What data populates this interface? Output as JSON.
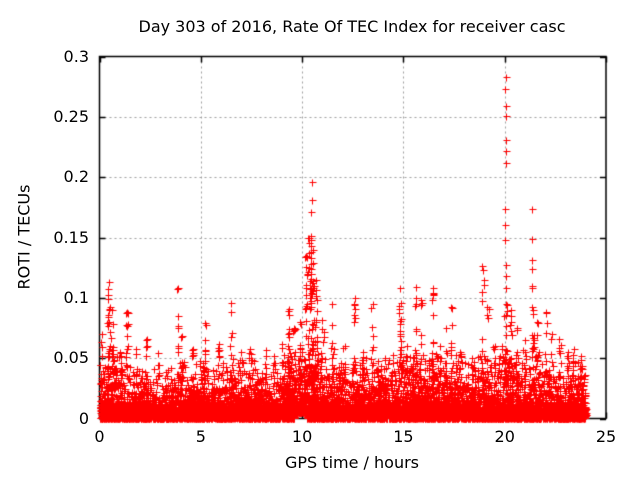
{
  "chart_data": {
    "type": "scatter",
    "title": "Day 303 of 2016, Rate Of TEC Index for receiver casc",
    "xlabel": "GPS time / hours",
    "ylabel": "ROTI / TECUs",
    "xlim": [
      0,
      25
    ],
    "ylim": [
      0,
      0.3
    ],
    "xticks": [
      0,
      5,
      10,
      15,
      20,
      25
    ],
    "xtick_labels": [
      "0",
      "5",
      "10",
      "15",
      "20",
      "25"
    ],
    "yticks": [
      0,
      0.05,
      0.1,
      0.15,
      0.2,
      0.25,
      0.3
    ],
    "ytick_labels": [
      "0",
      "0.05",
      "0.1",
      "0.15",
      "0.2",
      "0.25",
      "0.3"
    ],
    "grid": true,
    "legend": false,
    "marker": "plus",
    "marker_size_px": 7,
    "colors": {
      "marker": "#ff0000",
      "grid": "#9e9e9e",
      "border": "#000000",
      "background": "#ffffff"
    },
    "data_hours_range": [
      0,
      24
    ],
    "background_band": {
      "carpet_n": 3200,
      "carpet_max": 0.014,
      "band_n": 6200,
      "band_overshoot": 1.25,
      "liftoff": {
        "range": [
          9.6,
          10.25
        ],
        "min": 0.005
      }
    },
    "envelope": [
      [
        0,
        0.038
      ],
      [
        0.3,
        0.045
      ],
      [
        0.6,
        0.05
      ],
      [
        1,
        0.042
      ],
      [
        1.5,
        0.036
      ],
      [
        2,
        0.034
      ],
      [
        2.5,
        0.036
      ],
      [
        3,
        0.03
      ],
      [
        3.5,
        0.034
      ],
      [
        4,
        0.04
      ],
      [
        4.5,
        0.036
      ],
      [
        5,
        0.04
      ],
      [
        5.5,
        0.034
      ],
      [
        6,
        0.038
      ],
      [
        6.5,
        0.04
      ],
      [
        7,
        0.036
      ],
      [
        7.5,
        0.04
      ],
      [
        8,
        0.038
      ],
      [
        8.5,
        0.038
      ],
      [
        9,
        0.042
      ],
      [
        9.5,
        0.05
      ],
      [
        9.8,
        0.042
      ],
      [
        10.2,
        0.055
      ],
      [
        10.5,
        0.06
      ],
      [
        11,
        0.045
      ],
      [
        11.5,
        0.046
      ],
      [
        12,
        0.04
      ],
      [
        12.5,
        0.038
      ],
      [
        13,
        0.04
      ],
      [
        13.5,
        0.042
      ],
      [
        14,
        0.038
      ],
      [
        14.5,
        0.044
      ],
      [
        15,
        0.042
      ],
      [
        15.5,
        0.044
      ],
      [
        16,
        0.042
      ],
      [
        16.5,
        0.046
      ],
      [
        17,
        0.044
      ],
      [
        17.5,
        0.044
      ],
      [
        18,
        0.04
      ],
      [
        18.5,
        0.042
      ],
      [
        19,
        0.044
      ],
      [
        19.5,
        0.042
      ],
      [
        20,
        0.05
      ],
      [
        20.5,
        0.046
      ],
      [
        21,
        0.04
      ],
      [
        21.5,
        0.046
      ],
      [
        22,
        0.042
      ],
      [
        22.5,
        0.04
      ],
      [
        23,
        0.038
      ],
      [
        23.5,
        0.042
      ],
      [
        24,
        0.038
      ]
    ],
    "spikes": [
      {
        "x": 0.1,
        "peak": 0.07,
        "n": 6
      },
      {
        "x": 0.45,
        "peak": 0.113,
        "n": 26
      },
      {
        "x": 0.62,
        "peak": 0.09,
        "n": 12
      },
      {
        "x": 1.0,
        "peak": 0.055,
        "n": 5
      },
      {
        "x": 1.35,
        "peak": 0.088,
        "n": 12
      },
      {
        "x": 1.8,
        "peak": 0.058,
        "n": 5
      },
      {
        "x": 2.35,
        "peak": 0.066,
        "n": 8
      },
      {
        "x": 2.9,
        "peak": 0.054,
        "n": 5
      },
      {
        "x": 3.88,
        "peak": 0.108,
        "n": 10
      },
      {
        "x": 4.05,
        "peak": 0.068,
        "n": 10
      },
      {
        "x": 4.6,
        "peak": 0.058,
        "n": 5
      },
      {
        "x": 5.2,
        "peak": 0.079,
        "n": 10
      },
      {
        "x": 5.9,
        "peak": 0.062,
        "n": 6
      },
      {
        "x": 6.5,
        "peak": 0.096,
        "n": 10
      },
      {
        "x": 7.0,
        "peak": 0.055,
        "n": 5
      },
      {
        "x": 7.45,
        "peak": 0.058,
        "n": 6
      },
      {
        "x": 8.2,
        "peak": 0.057,
        "n": 6
      },
      {
        "x": 8.6,
        "peak": 0.052,
        "n": 5
      },
      {
        "x": 9.0,
        "peak": 0.062,
        "n": 6
      },
      {
        "x": 9.35,
        "peak": 0.091,
        "n": 16
      },
      {
        "x": 9.6,
        "peak": 0.075,
        "n": 10
      },
      {
        "x": 9.9,
        "peak": 0.08,
        "n": 10
      },
      {
        "x": 10.2,
        "peak": 0.135,
        "n": 18
      },
      {
        "x": 10.35,
        "peak": 0.15,
        "n": 20
      },
      {
        "x": 10.45,
        "peak": 0.12,
        "n": 16
      },
      {
        "x": 10.55,
        "peak": 0.14,
        "n": 18
      },
      {
        "x": 10.7,
        "peak": 0.115,
        "n": 12
      },
      {
        "x": 11.0,
        "peak": 0.082,
        "n": 8
      },
      {
        "x": 11.5,
        "peak": 0.095,
        "n": 10
      },
      {
        "x": 12.1,
        "peak": 0.06,
        "n": 6
      },
      {
        "x": 12.6,
        "peak": 0.1,
        "n": 10
      },
      {
        "x": 13.0,
        "peak": 0.055,
        "n": 5
      },
      {
        "x": 13.5,
        "peak": 0.095,
        "n": 8
      },
      {
        "x": 14.1,
        "peak": 0.05,
        "n": 4
      },
      {
        "x": 14.83,
        "peak": 0.108,
        "n": 22
      },
      {
        "x": 15.2,
        "peak": 0.06,
        "n": 5
      },
      {
        "x": 15.6,
        "peak": 0.109,
        "n": 14
      },
      {
        "x": 15.85,
        "peak": 0.098,
        "n": 8
      },
      {
        "x": 16.45,
        "peak": 0.108,
        "n": 16
      },
      {
        "x": 16.8,
        "peak": 0.06,
        "n": 5
      },
      {
        "x": 17.1,
        "peak": 0.075,
        "n": 6
      },
      {
        "x": 17.35,
        "peak": 0.092,
        "n": 10
      },
      {
        "x": 17.8,
        "peak": 0.055,
        "n": 4
      },
      {
        "x": 18.4,
        "peak": 0.05,
        "n": 4
      },
      {
        "x": 18.9,
        "peak": 0.126,
        "n": 16
      },
      {
        "x": 19.15,
        "peak": 0.092,
        "n": 8
      },
      {
        "x": 19.5,
        "peak": 0.06,
        "n": 5
      },
      {
        "x": 20.05,
        "peak": 0.095,
        "n": 18
      },
      {
        "x": 20.3,
        "peak": 0.09,
        "n": 10
      },
      {
        "x": 20.6,
        "peak": 0.075,
        "n": 8
      },
      {
        "x": 21.0,
        "peak": 0.065,
        "n": 6
      },
      {
        "x": 21.4,
        "peak": 0.09,
        "n": 14
      },
      {
        "x": 21.6,
        "peak": 0.08,
        "n": 8
      },
      {
        "x": 22.05,
        "peak": 0.088,
        "n": 10
      },
      {
        "x": 22.35,
        "peak": 0.07,
        "n": 6
      },
      {
        "x": 22.7,
        "peak": 0.066,
        "n": 10
      },
      {
        "x": 23.1,
        "peak": 0.055,
        "n": 5
      },
      {
        "x": 23.4,
        "peak": 0.058,
        "n": 6
      },
      {
        "x": 23.75,
        "peak": 0.052,
        "n": 6
      }
    ],
    "columns": [
      {
        "x": 20.05,
        "ys": [
          0.283,
          0.273,
          0.259,
          0.251,
          0.231,
          0.222,
          0.212,
          0.174,
          0.16,
          0.148,
          0.127,
          0.118,
          0.108
        ]
      },
      {
        "x": 10.45,
        "ys": [
          0.196,
          0.181,
          0.171,
          0.151,
          0.148,
          0.143,
          0.138,
          0.133,
          0.128,
          0.124,
          0.12,
          0.116,
          0.112,
          0.108,
          0.104,
          0.1,
          0.096,
          0.092
        ]
      },
      {
        "x": 21.35,
        "ys": [
          0.174,
          0.149,
          0.131,
          0.124,
          0.11,
          0.108,
          0.092
        ]
      }
    ]
  }
}
